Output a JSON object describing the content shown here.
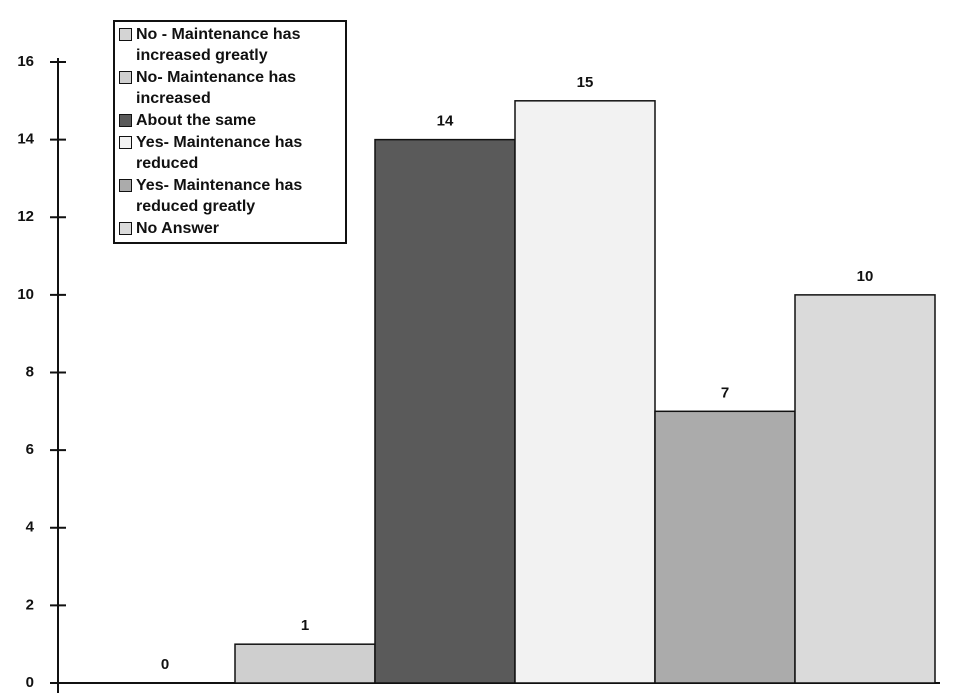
{
  "chart_data": {
    "type": "bar",
    "categories": [
      null
    ],
    "series": [
      {
        "name": "No - Maintenance has increased greatly",
        "color": "#d4d4d4",
        "values": [
          0
        ]
      },
      {
        "name": "No- Maintenance has increased",
        "color": "#cfcfcf",
        "values": [
          1
        ]
      },
      {
        "name": "About the same",
        "color": "#5a5a5a",
        "values": [
          14
        ]
      },
      {
        "name": "Yes- Maintenance has reduced",
        "color": "#f2f2f2",
        "values": [
          15
        ]
      },
      {
        "name": "Yes- Maintenance has reduced greatly",
        "color": "#ababab",
        "values": [
          7
        ]
      },
      {
        "name": "No Answer",
        "color": "#dadada",
        "values": [
          10
        ]
      }
    ],
    "ylim": [
      0,
      16
    ],
    "yticks": [
      0,
      2,
      4,
      6,
      8,
      10,
      12,
      14,
      16
    ],
    "grid": false,
    "legend": "upper left"
  }
}
